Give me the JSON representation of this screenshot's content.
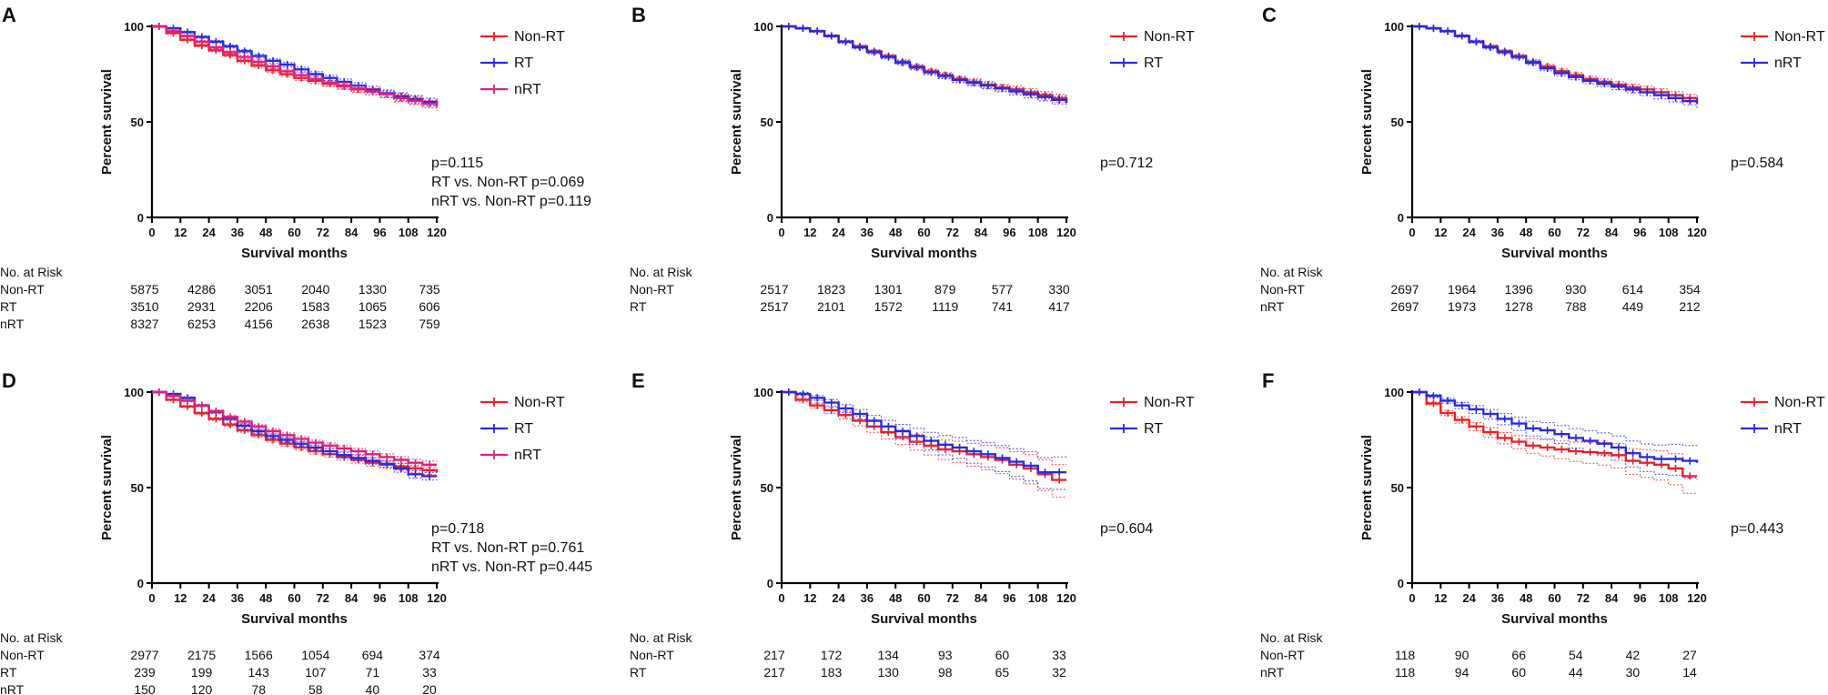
{
  "chart_data": [
    {
      "panel_label": "A",
      "type": "line",
      "xlabel": "Survival months",
      "ylabel": "Percent survival",
      "xlim": [
        0,
        120
      ],
      "ylim": [
        0,
        100
      ],
      "x_ticks": [
        "0",
        "12",
        "24",
        "36",
        "48",
        "60",
        "72",
        "84",
        "96",
        "108",
        "120"
      ],
      "y_ticks": [
        "0",
        "50",
        "100"
      ],
      "x": [
        0,
        6,
        12,
        18,
        24,
        30,
        36,
        42,
        48,
        54,
        60,
        66,
        72,
        78,
        84,
        90,
        96,
        102,
        108,
        114,
        120
      ],
      "series": [
        {
          "name": "Non-RT",
          "color": "#e8232a",
          "values": [
            100,
            96.5,
            93,
            90,
            87.5,
            85,
            82,
            79.5,
            77,
            75,
            73,
            71.5,
            70,
            68.5,
            67,
            66,
            64.5,
            63,
            61.5,
            60.5,
            59
          ]
        },
        {
          "name": "RT",
          "color": "#2a2ae0",
          "values": [
            100,
            99,
            97,
            94.5,
            92,
            89.5,
            87,
            84.5,
            82,
            80,
            77.5,
            75,
            73,
            71,
            69,
            67,
            65,
            63.5,
            62,
            60.5,
            59
          ]
        },
        {
          "name": "nRT",
          "color": "#e0207a",
          "values": [
            100,
            97.5,
            95,
            92,
            89,
            86.5,
            84,
            81.5,
            79,
            76.5,
            74.5,
            72.5,
            70.5,
            69,
            67.5,
            66,
            64.5,
            62.5,
            61,
            59.5,
            58
          ]
        }
      ],
      "p_values": [
        "p=0.115",
        "RT vs. Non-RT p=0.069",
        "nRT vs. Non-RT p=0.119"
      ],
      "risk_table": {
        "header": "No. at Risk",
        "rows": [
          {
            "label": "Non-RT",
            "values": [
              "5875",
              "4286",
              "3051",
              "2040",
              "1330",
              "735"
            ]
          },
          {
            "label": "RT",
            "values": [
              "3510",
              "2931",
              "2206",
              "1583",
              "1065",
              "606"
            ]
          },
          {
            "label": "nRT",
            "values": [
              "8327",
              "6253",
              "4156",
              "2638",
              "1523",
              "759"
            ]
          }
        ]
      }
    },
    {
      "panel_label": "B",
      "type": "line",
      "xlabel": "Survival months",
      "ylabel": "Percent survival",
      "xlim": [
        0,
        120
      ],
      "ylim": [
        0,
        100
      ],
      "x_ticks": [
        "0",
        "12",
        "24",
        "36",
        "48",
        "60",
        "72",
        "84",
        "96",
        "108",
        "120"
      ],
      "y_ticks": [
        "0",
        "50",
        "100"
      ],
      "x": [
        0,
        6,
        12,
        18,
        24,
        30,
        36,
        42,
        48,
        54,
        60,
        66,
        72,
        78,
        84,
        90,
        96,
        102,
        108,
        114,
        120
      ],
      "series": [
        {
          "name": "Non-RT",
          "color": "#e8232a",
          "values": [
            100,
            99,
            97.5,
            95,
            92,
            89.5,
            87,
            84.5,
            81.5,
            79,
            76.5,
            74.5,
            72.5,
            71,
            69.5,
            68,
            67,
            65.5,
            64,
            62.5,
            61
          ]
        },
        {
          "name": "RT",
          "color": "#2a2ae0",
          "values": [
            100,
            99,
            97.5,
            95,
            92,
            89,
            86.5,
            84,
            81,
            78.5,
            76,
            74,
            72,
            70.5,
            69,
            67.5,
            66,
            64.5,
            63,
            61.5,
            60
          ]
        }
      ],
      "p_values": [
        "p=0.712"
      ],
      "risk_table": {
        "header": "No. at Risk",
        "rows": [
          {
            "label": "Non-RT",
            "values": [
              "2517",
              "1823",
              "1301",
              "879",
              "577",
              "330"
            ]
          },
          {
            "label": "RT",
            "values": [
              "2517",
              "2101",
              "1572",
              "1119",
              "741",
              "417"
            ]
          }
        ]
      }
    },
    {
      "panel_label": "C",
      "type": "line",
      "xlabel": "Survival months",
      "ylabel": "Percent survival",
      "xlim": [
        0,
        120
      ],
      "ylim": [
        0,
        100
      ],
      "x_ticks": [
        "0",
        "12",
        "24",
        "36",
        "48",
        "60",
        "72",
        "84",
        "96",
        "108",
        "120"
      ],
      "y_ticks": [
        "0",
        "50",
        "100"
      ],
      "x": [
        0,
        6,
        12,
        18,
        24,
        30,
        36,
        42,
        48,
        54,
        60,
        66,
        72,
        78,
        84,
        90,
        96,
        102,
        108,
        114,
        120
      ],
      "series": [
        {
          "name": "Non-RT",
          "color": "#e8232a",
          "values": [
            100,
            99,
            97.5,
            95,
            92,
            89.5,
            87,
            84.5,
            81.5,
            79,
            76.5,
            74.5,
            72.5,
            71,
            69.5,
            68,
            67,
            65.5,
            64,
            62.5,
            61
          ]
        },
        {
          "name": "nRT",
          "color": "#2a2ae0",
          "values": [
            100,
            99,
            97.5,
            95,
            92,
            89,
            86.5,
            84,
            81,
            78,
            75.5,
            73.5,
            71.5,
            70,
            68.5,
            67,
            65.5,
            64,
            62.5,
            61,
            59.5
          ]
        }
      ],
      "p_values": [
        "p=0.584"
      ],
      "risk_table": {
        "header": "No. at Risk",
        "rows": [
          {
            "label": "Non-RT",
            "values": [
              "2697",
              "1964",
              "1396",
              "930",
              "614",
              "354"
            ]
          },
          {
            "label": "nRT",
            "values": [
              "2697",
              "1973",
              "1278",
              "788",
              "449",
              "212"
            ]
          }
        ]
      }
    },
    {
      "panel_label": "D",
      "type": "line",
      "xlabel": "Survival months",
      "ylabel": "Percent survival",
      "xlim": [
        0,
        120
      ],
      "ylim": [
        0,
        100
      ],
      "x_ticks": [
        "0",
        "12",
        "24",
        "36",
        "48",
        "60",
        "72",
        "84",
        "96",
        "108",
        "120"
      ],
      "y_ticks": [
        "0",
        "50",
        "100"
      ],
      "x": [
        0,
        6,
        12,
        18,
        24,
        30,
        36,
        42,
        48,
        54,
        60,
        66,
        72,
        78,
        84,
        90,
        96,
        102,
        108,
        114,
        120
      ],
      "series": [
        {
          "name": "Non-RT",
          "color": "#e8232a",
          "values": [
            100,
            96,
            92.5,
            89,
            86,
            83,
            80,
            77.5,
            75,
            73,
            71,
            69,
            67.5,
            66,
            64.5,
            63,
            62,
            61,
            60,
            59,
            58
          ]
        },
        {
          "name": "RT",
          "color": "#2a2ae0",
          "values": [
            100,
            99,
            97,
            93,
            89.5,
            86,
            82.5,
            79.5,
            77,
            75,
            73,
            71,
            69,
            67,
            65.5,
            64,
            62.5,
            60,
            57,
            56,
            56
          ]
        },
        {
          "name": "nRT",
          "color": "#e0207a",
          "values": [
            100,
            98,
            95.5,
            93,
            90,
            87,
            84.5,
            82,
            79.5,
            77.5,
            75.5,
            73.5,
            72,
            70.5,
            69,
            67.5,
            66,
            64.5,
            63,
            62,
            62
          ]
        }
      ],
      "p_values": [
        "p=0.718",
        "RT vs. Non-RT p=0.761",
        "nRT vs. Non-RT p=0.445"
      ],
      "risk_table": {
        "header": "No. at Risk",
        "rows": [
          {
            "label": "Non-RT",
            "values": [
              "2977",
              "2175",
              "1566",
              "1054",
              "694",
              "374"
            ]
          },
          {
            "label": "RT",
            "values": [
              "239",
              "199",
              "143",
              "107",
              "71",
              "33"
            ]
          },
          {
            "label": "nRT",
            "values": [
              "150",
              "120",
              "78",
              "58",
              "40",
              "20"
            ]
          }
        ]
      }
    },
    {
      "panel_label": "E",
      "type": "line",
      "xlabel": "Survival months",
      "ylabel": "Percent survival",
      "xlim": [
        0,
        120
      ],
      "ylim": [
        0,
        100
      ],
      "x_ticks": [
        "0",
        "12",
        "24",
        "36",
        "48",
        "60",
        "72",
        "84",
        "96",
        "108",
        "120"
      ],
      "y_ticks": [
        "0",
        "50",
        "100"
      ],
      "x": [
        0,
        6,
        12,
        18,
        24,
        30,
        36,
        42,
        48,
        54,
        60,
        66,
        72,
        78,
        84,
        90,
        96,
        102,
        108,
        114,
        120
      ],
      "series": [
        {
          "name": "Non-RT",
          "color": "#e8232a",
          "values": [
            100,
            96,
            93,
            90.5,
            88,
            85,
            82,
            79,
            76.5,
            74,
            72,
            70,
            69,
            67.5,
            66,
            64.5,
            62,
            60,
            57,
            54,
            54
          ]
        },
        {
          "name": "RT",
          "color": "#2a2ae0",
          "values": [
            100,
            99,
            97,
            94.5,
            91.5,
            88.5,
            85,
            82,
            79.5,
            77,
            74.5,
            72.5,
            71,
            69,
            67.5,
            65.5,
            63.5,
            61.5,
            58,
            58,
            58
          ]
        }
      ],
      "p_values": [
        "p=0.604"
      ],
      "risk_table": {
        "header": "No. at Risk",
        "rows": [
          {
            "label": "Non-RT",
            "values": [
              "217",
              "172",
              "134",
              "93",
              "60",
              "33"
            ]
          },
          {
            "label": "RT",
            "values": [
              "217",
              "183",
              "130",
              "98",
              "65",
              "32"
            ]
          }
        ]
      }
    },
    {
      "panel_label": "F",
      "type": "line",
      "xlabel": "Survival months",
      "ylabel": "Percent survival",
      "xlim": [
        0,
        120
      ],
      "ylim": [
        0,
        100
      ],
      "x_ticks": [
        "0",
        "12",
        "24",
        "36",
        "48",
        "60",
        "72",
        "84",
        "96",
        "108",
        "120"
      ],
      "y_ticks": [
        "0",
        "50",
        "100"
      ],
      "x": [
        0,
        6,
        12,
        18,
        24,
        30,
        36,
        42,
        48,
        54,
        60,
        66,
        72,
        78,
        84,
        90,
        96,
        102,
        108,
        114,
        120
      ],
      "series": [
        {
          "name": "Non-RT",
          "color": "#e8232a",
          "values": [
            100,
            94,
            89,
            85.5,
            82,
            79,
            76,
            74,
            72,
            71,
            70,
            69,
            68.5,
            68,
            67,
            64,
            63,
            62,
            60,
            56,
            56
          ]
        },
        {
          "name": "nRT",
          "color": "#2a2ae0",
          "values": [
            100,
            98,
            95.5,
            93,
            91,
            88.5,
            86,
            83.5,
            81,
            80,
            78,
            76,
            74.5,
            73,
            71,
            68,
            66,
            65,
            65,
            64,
            63
          ]
        }
      ],
      "p_values": [
        "p=0.443"
      ],
      "risk_table": {
        "header": "No. at Risk",
        "rows": [
          {
            "label": "Non-RT",
            "values": [
              "118",
              "90",
              "66",
              "54",
              "42",
              "27"
            ]
          },
          {
            "label": "nRT",
            "values": [
              "118",
              "94",
              "60",
              "44",
              "30",
              "14"
            ]
          }
        ]
      }
    }
  ]
}
